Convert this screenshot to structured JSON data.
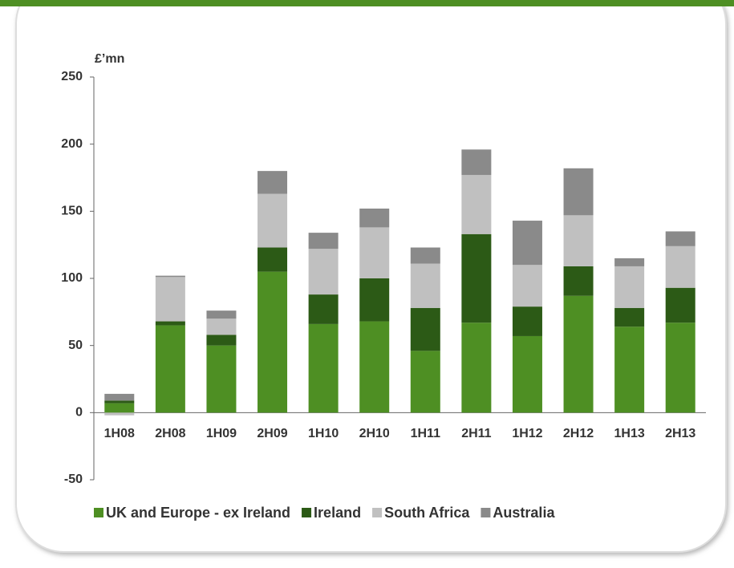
{
  "chart_data": {
    "type": "bar",
    "stacked": true,
    "y_label": "£’mn",
    "categories": [
      "1H08",
      "2H08",
      "1H09",
      "2H09",
      "1H10",
      "2H10",
      "1H11",
      "2H11",
      "1H12",
      "2H12",
      "1H13",
      "2H13"
    ],
    "series": [
      {
        "name": "UK and Europe - ex Ireland",
        "color": "#4e8f23",
        "values": [
          7,
          65,
          50,
          105,
          66,
          68,
          46,
          67,
          57,
          87,
          64,
          67
        ]
      },
      {
        "name": "Ireland",
        "color": "#2c5a16",
        "values": [
          2,
          3,
          8,
          18,
          22,
          32,
          32,
          66,
          22,
          22,
          14,
          26
        ]
      },
      {
        "name": "South Africa",
        "color": "#c0c0c0",
        "values": [
          -2,
          33,
          12,
          40,
          34,
          38,
          33,
          44,
          31,
          38,
          31,
          31
        ]
      },
      {
        "name": "Australia",
        "color": "#8a8a8a",
        "values": [
          5,
          1,
          6,
          17,
          12,
          14,
          12,
          19,
          33,
          35,
          6,
          11
        ]
      }
    ],
    "ylim": [
      -50,
      250
    ],
    "yticks": [
      -50,
      0,
      50,
      100,
      150,
      200,
      250
    ]
  }
}
